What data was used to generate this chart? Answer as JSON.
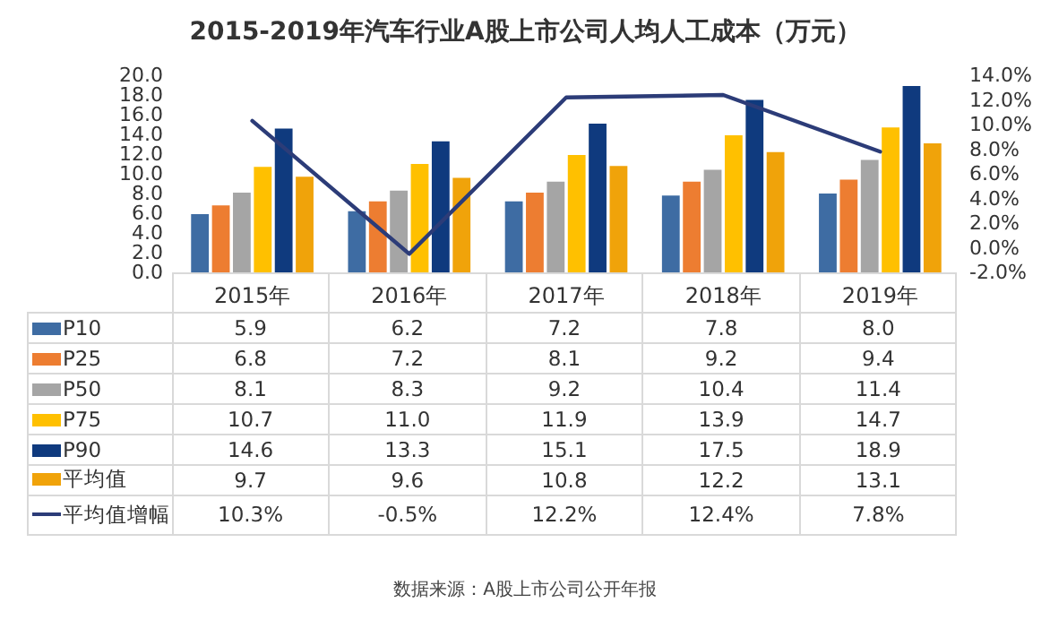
{
  "chart_data": {
    "type": "bar",
    "title": "2015-2019年汽车行业A股上市公司人均人工成本（万元）",
    "categories": [
      "2015年",
      "2016年",
      "2017年",
      "2018年",
      "2019年"
    ],
    "series": [
      {
        "name": "P10",
        "color": "#3e6ca3",
        "values": [
          5.9,
          6.2,
          7.2,
          7.8,
          8.0
        ],
        "value_labels": [
          "5.9",
          "6.2",
          "7.2",
          "7.8",
          "8.0"
        ]
      },
      {
        "name": "P25",
        "color": "#ed7d31",
        "values": [
          6.8,
          7.2,
          8.1,
          9.2,
          9.4
        ],
        "value_labels": [
          "6.8",
          "7.2",
          "8.1",
          "9.2",
          "9.4"
        ]
      },
      {
        "name": "P50",
        "color": "#a5a5a5",
        "values": [
          8.1,
          8.3,
          9.2,
          10.4,
          11.4
        ],
        "value_labels": [
          "8.1",
          "8.3",
          "9.2",
          "10.4",
          "11.4"
        ]
      },
      {
        "name": "P75",
        "color": "#ffc000",
        "values": [
          10.7,
          11.0,
          11.9,
          13.9,
          14.7
        ],
        "value_labels": [
          "10.7",
          "11.0",
          "11.9",
          "13.9",
          "14.7"
        ]
      },
      {
        "name": "P90",
        "color": "#0f3a7e",
        "values": [
          14.6,
          13.3,
          15.1,
          17.5,
          18.9
        ],
        "value_labels": [
          "14.6",
          "13.3",
          "15.1",
          "17.5",
          "18.9"
        ]
      },
      {
        "name": "平均值",
        "color": "#f0a30a",
        "values": [
          9.7,
          9.6,
          10.8,
          12.2,
          13.1
        ],
        "value_labels": [
          "9.7",
          "9.6",
          "10.8",
          "12.2",
          "13.1"
        ]
      },
      {
        "name": "平均值增幅",
        "type": "line",
        "axis": "y2",
        "color": "#2c3c78",
        "values": [
          10.3,
          -0.5,
          12.2,
          12.4,
          7.8
        ],
        "value_labels": [
          "10.3%",
          "-0.5%",
          "12.2%",
          "12.4%",
          "7.8%"
        ]
      }
    ],
    "ylim": [
      0,
      20
    ],
    "yticks": [
      {
        "value": 0,
        "label": "0.0"
      },
      {
        "value": 2,
        "label": "2.0"
      },
      {
        "value": 4,
        "label": "4.0"
      },
      {
        "value": 6,
        "label": "6.0"
      },
      {
        "value": 8,
        "label": "8.0"
      },
      {
        "value": 10,
        "label": "10.0"
      },
      {
        "value": 12,
        "label": "12.0"
      },
      {
        "value": 14,
        "label": "14.0"
      },
      {
        "value": 16,
        "label": "16.0"
      },
      {
        "value": 18,
        "label": "18.0"
      },
      {
        "value": 20,
        "label": "20.0"
      }
    ],
    "y2lim": [
      -2,
      14
    ],
    "y2ticks": [
      {
        "value": -2,
        "label": "-2.0%"
      },
      {
        "value": 0,
        "label": "0.0%"
      },
      {
        "value": 2,
        "label": "2.0%"
      },
      {
        "value": 4,
        "label": "4.0%"
      },
      {
        "value": 6,
        "label": "6.0%"
      },
      {
        "value": 8,
        "label": "8.0%"
      },
      {
        "value": 10,
        "label": "10.0%"
      },
      {
        "value": 12,
        "label": "12.0%"
      },
      {
        "value": 14,
        "label": "14.0%"
      }
    ],
    "marker": "none",
    "legend": "bottom",
    "line_style": "solid",
    "annotations": [
      "数据来源：A股上市公司公开年报"
    ]
  }
}
